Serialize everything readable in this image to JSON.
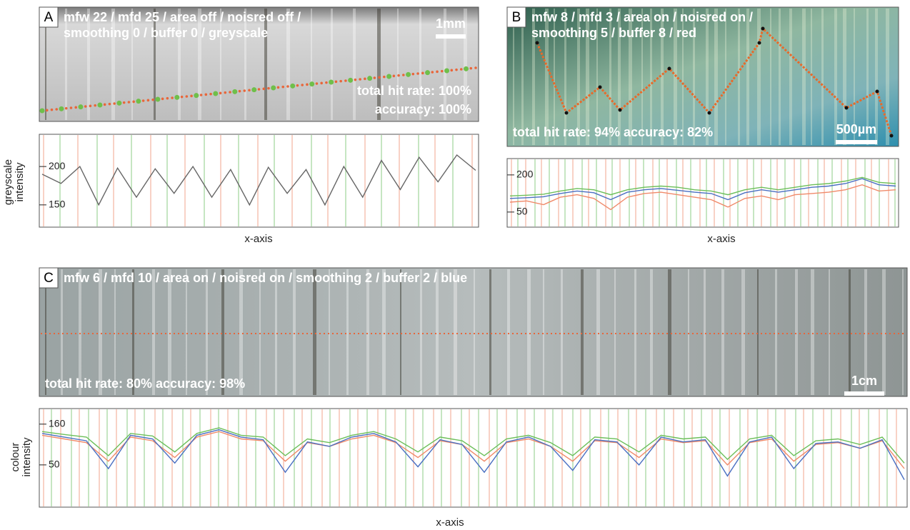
{
  "panels": [
    {
      "label": "A",
      "settings_lines": [
        "mfw 22 / mfd 25 / area off / noisred off /",
        "smoothing 0 / buffer 0 / greyscale"
      ],
      "scale_bar": "1mm",
      "stats": [
        "total hit rate: 100%",
        "accuracy: 100%"
      ],
      "plot": {
        "ylabel_lines": [
          "greyscale",
          "intensity"
        ],
        "xlabel": "x-axis",
        "ylim": [
          121,
          242
        ],
        "yticks": [
          150,
          200
        ],
        "series": [
          {
            "color": "#666666",
            "values": [
              190,
              178,
              200,
              150,
              198,
              160,
              197,
              165,
              200,
              160,
              196,
              150,
              199,
              165,
              196,
              150,
              200,
              160,
              208,
              170,
              212,
              180,
              215,
              195
            ]
          }
        ]
      }
    },
    {
      "label": "B",
      "settings_lines": [
        "mfw 8 / mfd 3 / area on / noisred on /",
        "smoothing 5 / buffer 8 / red"
      ],
      "scale_bar": "500µm",
      "stats": [
        "total hit rate: 94% accuracy: 82%"
      ],
      "plot": {
        "ylabel_lines": [],
        "xlabel": "x-axis",
        "ylim": [
          -11,
          266
        ],
        "yticks": [
          200,
          50
        ],
        "series": [
          {
            "color": "#f08a6a",
            "values": [
              90,
              95,
              80,
              110,
              120,
              105,
              60,
              110,
              125,
              130,
              120,
              110,
              100,
              70,
              105,
              115,
              100,
              120,
              125,
              130,
              140,
              160,
              135,
              140
            ]
          },
          {
            "color": "#6cbf5a",
            "values": [
              115,
              118,
              122,
              135,
              145,
              140,
              120,
              140,
              150,
              155,
              150,
              140,
              135,
              120,
              140,
              150,
              140,
              150,
              160,
              165,
              175,
              190,
              170,
              165
            ]
          },
          {
            "color": "#4a6fc2",
            "values": [
              105,
              108,
              112,
              125,
              135,
              128,
              100,
              130,
              140,
              145,
              138,
              130,
              125,
              100,
              128,
              140,
              130,
              140,
              150,
              155,
              165,
              185,
              160,
              155
            ]
          }
        ]
      }
    },
    {
      "label": "C",
      "settings_lines": [
        "mfw 6 / mfd 10 / area on / noisred on / smoothing 2 / buffer 2 / blue"
      ],
      "scale_bar": "1cm",
      "stats": [
        "total hit rate: 80% accuracy: 98%"
      ],
      "plot": {
        "ylabel_lines": [
          "colour",
          "intensity"
        ],
        "xlabel": "x-axis",
        "ylim": [
          -64,
          202
        ],
        "yticks": [
          160,
          50
        ],
        "series": [
          {
            "color": "#f08a6a",
            "values": [
              130,
              120,
              110,
              60,
              125,
              115,
              70,
              125,
              140,
              120,
              115,
              60,
              110,
              100,
              120,
              130,
              110,
              70,
              115,
              105,
              60,
              110,
              120,
              100,
              60,
              115,
              110,
              70,
              120,
              110,
              115,
              50,
              110,
              120,
              60,
              105,
              110,
              95,
              115,
              40
            ]
          },
          {
            "color": "#6cbf5a",
            "values": [
              140,
              132,
              125,
              75,
              135,
              128,
              85,
              135,
              150,
              130,
              125,
              75,
              120,
              110,
              130,
              140,
              120,
              85,
              125,
              115,
              75,
              120,
              130,
              110,
              75,
              125,
              120,
              85,
              130,
              120,
              125,
              65,
              120,
              130,
              75,
              115,
              120,
              105,
              125,
              55
            ]
          },
          {
            "color": "#4a6fc2",
            "values": [
              135,
              125,
              115,
              40,
              130,
              120,
              55,
              130,
              145,
              125,
              118,
              30,
              112,
              100,
              125,
              135,
              112,
              45,
              118,
              105,
              30,
              112,
              125,
              100,
              35,
              118,
              112,
              50,
              125,
              112,
              118,
              20,
              112,
              125,
              40,
              108,
              112,
              95,
              118,
              10
            ]
          }
        ]
      }
    }
  ]
}
